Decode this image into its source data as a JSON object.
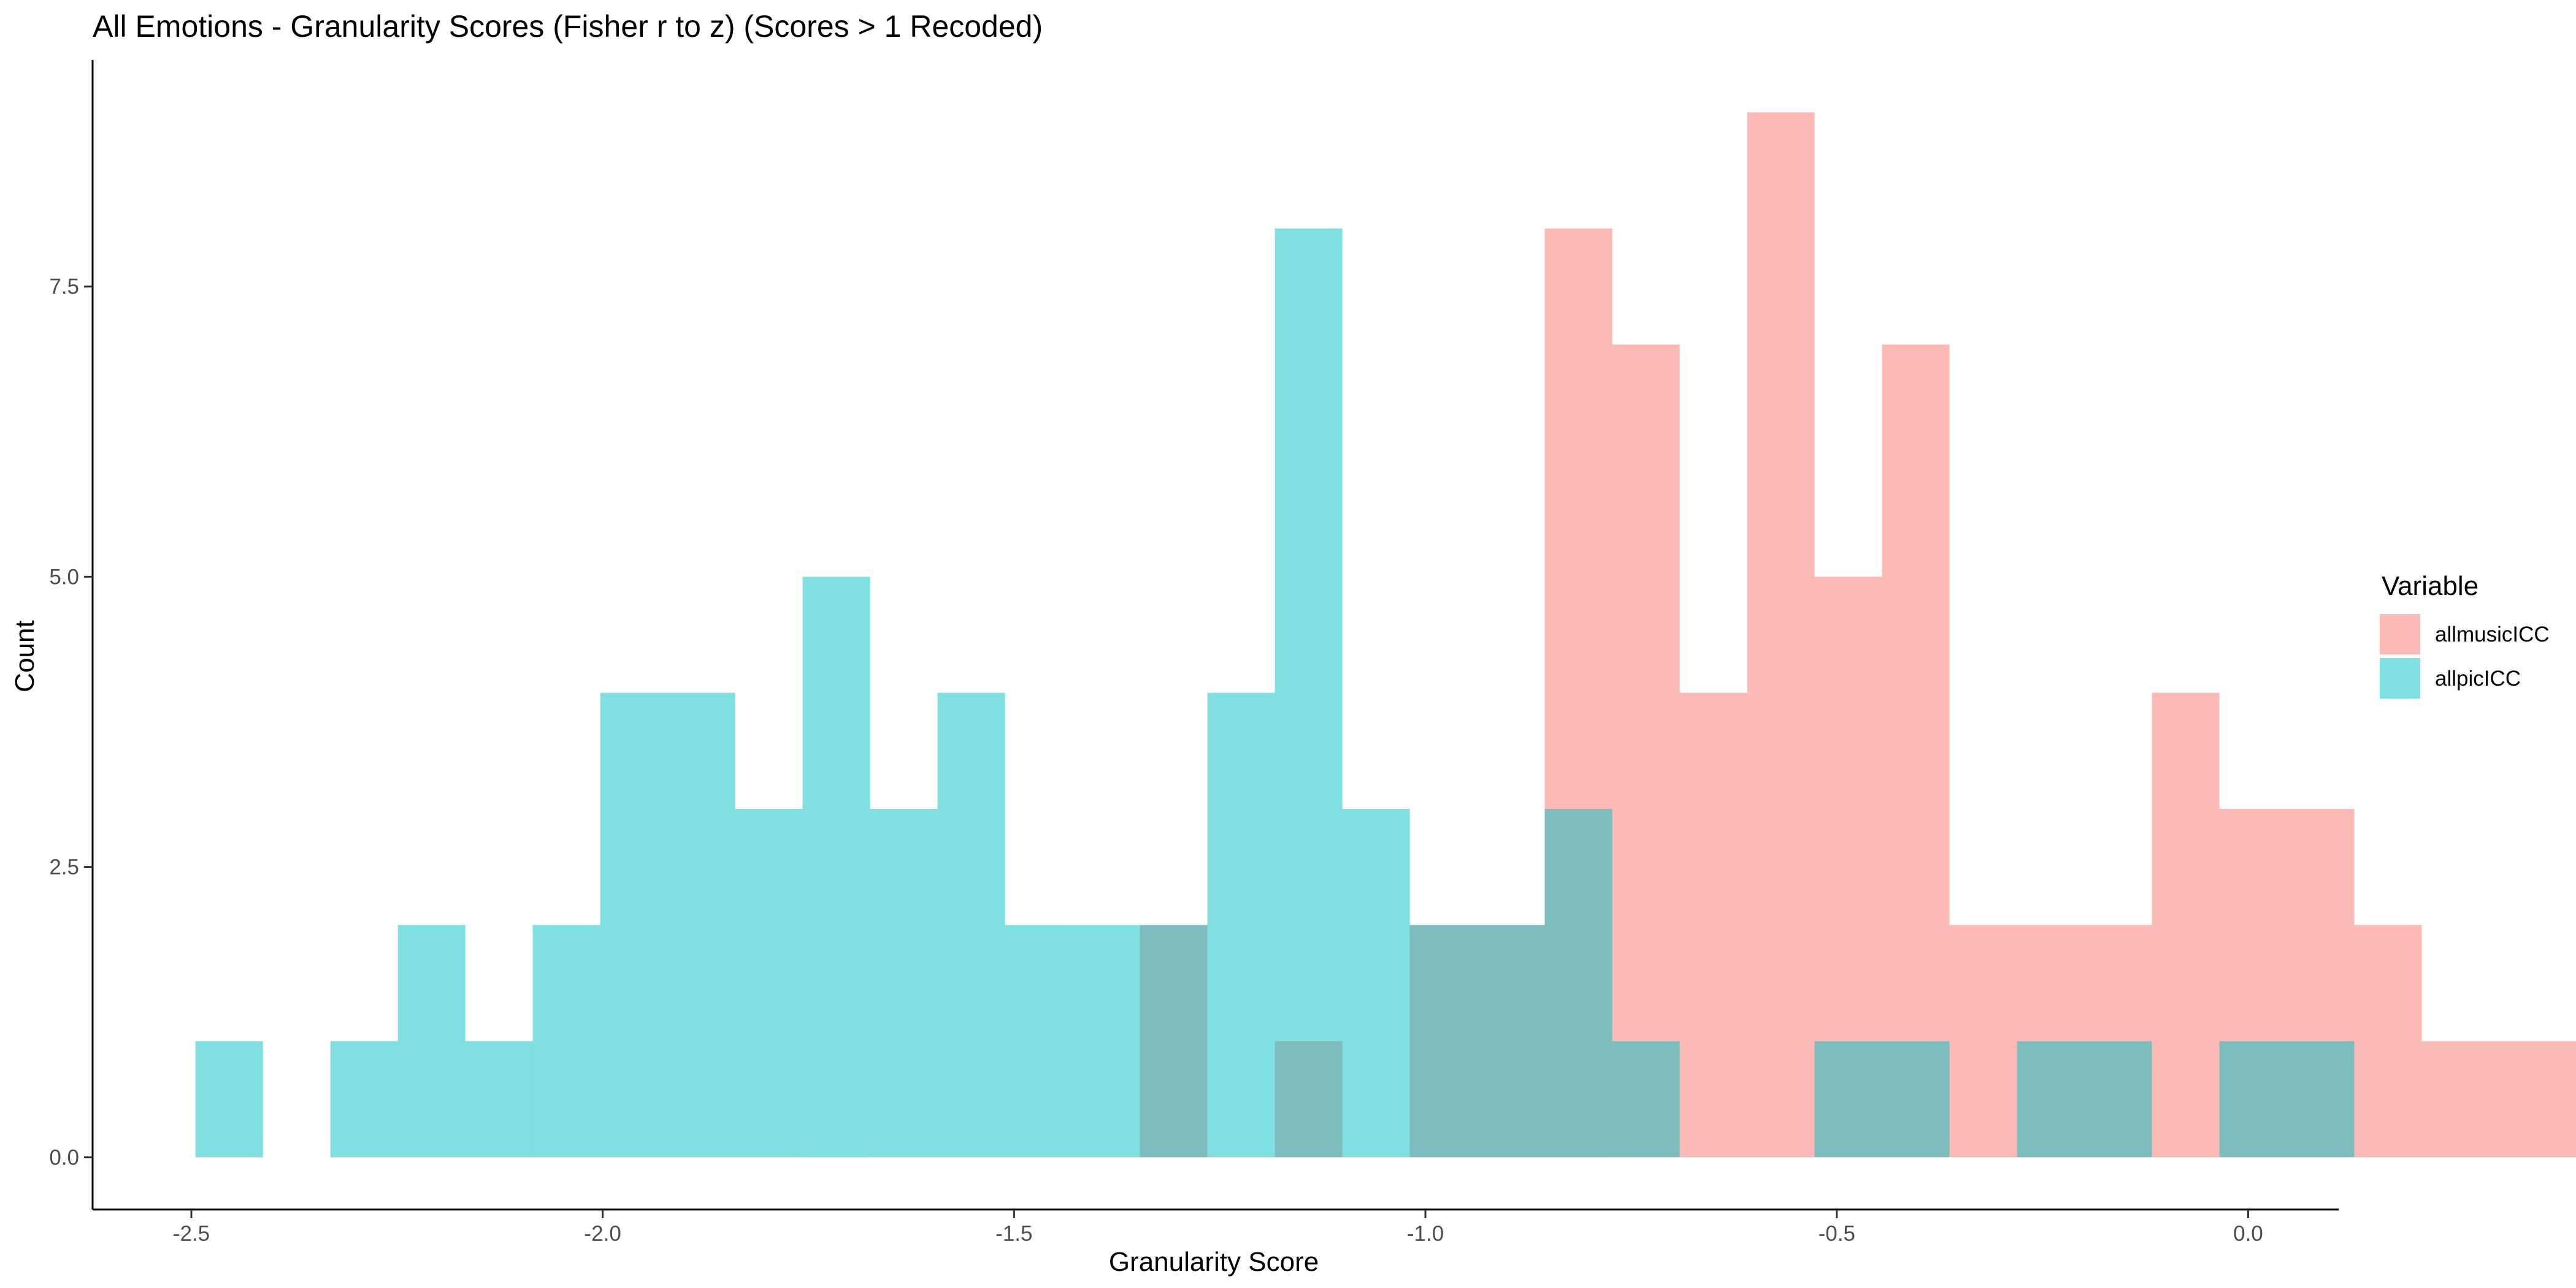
{
  "chart_data": {
    "type": "bar",
    "title": "All Emotions - Granularity Scores (Fisher r to z) (Scores > 1 Recoded)",
    "xlabel": "Granularity Score",
    "ylabel": "Count",
    "xlim": [
      -2.62,
      0.11
    ],
    "ylim": [
      -0.45,
      9.45
    ],
    "xticks": [
      -2.5,
      -2.0,
      -1.5,
      -1.0,
      -0.5,
      0.0
    ],
    "xtick_labels": [
      "-2.5",
      "-2.0",
      "-1.5",
      "-1.0",
      "-0.5",
      "0.0"
    ],
    "yticks": [
      0,
      2.5,
      5.0,
      7.5
    ],
    "ytick_labels": [
      "0.0",
      "2.5",
      "5.0",
      "7.5"
    ],
    "grid": false,
    "legend": {
      "title": "Variable",
      "position": "right"
    },
    "bin_start": -2.495,
    "bin_width": 0.082,
    "series": [
      {
        "name": "allmusicICC",
        "color": "#F8766D",
        "counts": [
          0,
          0,
          0,
          0,
          0,
          0,
          0,
          0,
          0,
          0,
          0,
          0,
          0,
          0,
          2,
          0,
          1,
          0,
          2,
          2,
          8,
          7,
          4,
          9,
          5,
          7,
          2,
          2,
          2,
          4,
          3,
          3,
          2,
          1,
          1,
          1
        ]
      },
      {
        "name": "allpicICC",
        "color": "#00BFC4",
        "counts": [
          1,
          0,
          1,
          2,
          1,
          2,
          4,
          4,
          3,
          5,
          3,
          4,
          2,
          2,
          2,
          4,
          8,
          3,
          2,
          2,
          3,
          1,
          0,
          0,
          1,
          1,
          0,
          1,
          1,
          0,
          1,
          1,
          0
        ]
      }
    ]
  }
}
